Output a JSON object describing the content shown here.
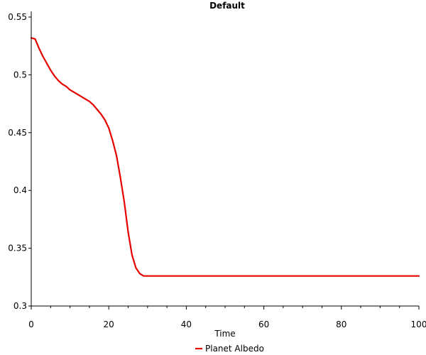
{
  "chart_data": {
    "type": "line",
    "title": "Default",
    "xlabel": "Time",
    "ylabel": "",
    "xlim": [
      0,
      100
    ],
    "ylim": [
      0.3,
      0.55
    ],
    "x_ticks": [
      0,
      20,
      40,
      60,
      80,
      100
    ],
    "x_tick_labels": [
      "0",
      "20",
      "40",
      "60",
      "80",
      "100"
    ],
    "y_ticks": [
      0.3,
      0.35,
      0.4,
      0.45,
      0.5,
      0.55
    ],
    "y_tick_labels": [
      "0.3",
      "0.35",
      "0.4",
      "0.45",
      "0.5",
      "0.55"
    ],
    "grid": false,
    "legend_position": "bottom",
    "series": [
      {
        "name": "Planet Albedo",
        "color": "#e60000",
        "x": [
          0,
          1,
          2,
          3,
          4,
          5,
          6,
          7,
          8,
          9,
          10,
          11,
          12,
          13,
          14,
          15,
          16,
          17,
          18,
          19,
          20,
          21,
          22,
          23,
          24,
          25,
          26,
          27,
          28,
          29,
          30,
          40,
          50,
          60,
          70,
          80,
          90,
          100
        ],
        "y": [
          0.532,
          0.531,
          0.523,
          0.516,
          0.51,
          0.504,
          0.499,
          0.495,
          0.492,
          0.49,
          0.487,
          0.485,
          0.483,
          0.481,
          0.479,
          0.477,
          0.474,
          0.47,
          0.466,
          0.461,
          0.454,
          0.443,
          0.43,
          0.411,
          0.39,
          0.364,
          0.344,
          0.333,
          0.328,
          0.326,
          0.326,
          0.326,
          0.326,
          0.326,
          0.326,
          0.326,
          0.326,
          0.326
        ]
      }
    ]
  }
}
